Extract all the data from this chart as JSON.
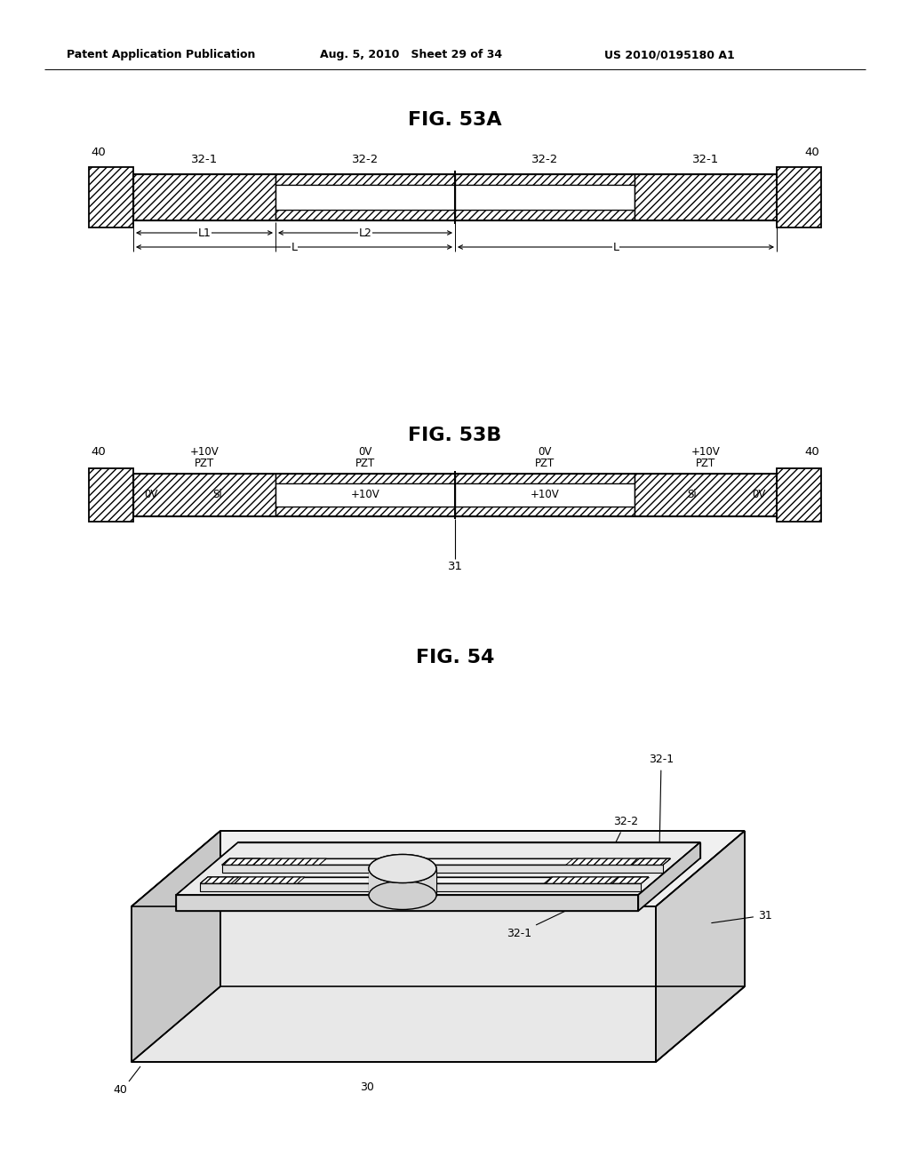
{
  "bg_color": "#ffffff",
  "header_left": "Patent Application Publication",
  "header_mid": "Aug. 5, 2010   Sheet 29 of 34",
  "header_right": "US 2010/0195180 A1",
  "fig53a_title": "FIG. 53A",
  "fig53b_title": "FIG. 53B",
  "fig54_title": "FIG. 54"
}
